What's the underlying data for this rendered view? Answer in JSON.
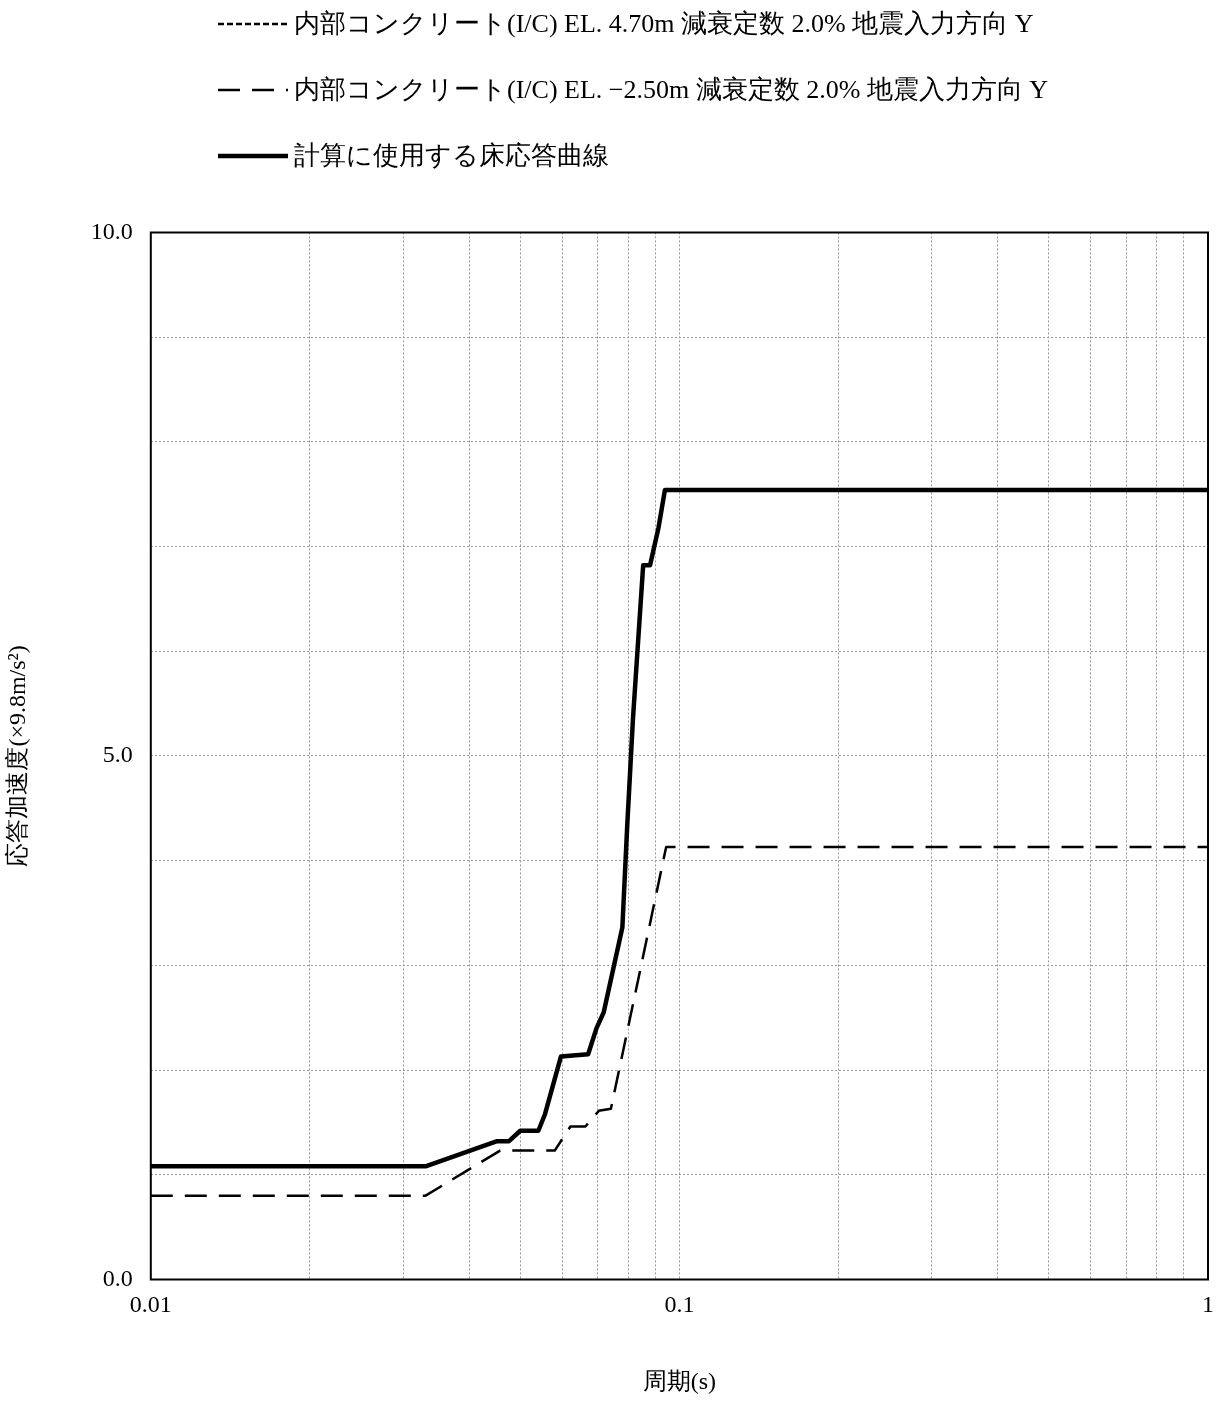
{
  "chart_data": {
    "type": "line",
    "xlabel": "周期(s)",
    "ylabel": "応答加速度(×9.8m/s²)",
    "log": "x",
    "grid": true,
    "legend": "top left",
    "marker": "none",
    "xlim": [
      0.01,
      1
    ],
    "xticks": [
      0.01,
      {
        "value": 0.02,
        "label": null
      },
      {
        "value": 0.03,
        "label": null
      },
      {
        "value": 0.04,
        "label": null
      },
      {
        "value": 0.05,
        "label": null
      },
      {
        "value": 0.06,
        "label": null
      },
      {
        "value": 0.07,
        "label": null
      },
      {
        "value": 0.08,
        "label": null
      },
      {
        "value": 0.09,
        "label": null
      },
      0.1,
      {
        "value": 0.2,
        "label": null
      },
      {
        "value": 0.3,
        "label": null
      },
      {
        "value": 0.4,
        "label": null
      },
      {
        "value": 0.5,
        "label": null
      },
      {
        "value": 0.6,
        "label": null
      },
      {
        "value": 0.7,
        "label": null
      },
      {
        "value": 0.8,
        "label": null
      },
      {
        "value": 0.9,
        "label": null
      },
      1
    ],
    "ylim": [
      0,
      10
    ],
    "yticks": [
      {
        "value": 0,
        "label": "0.0"
      },
      {
        "value": 1,
        "label": null
      },
      {
        "value": 2,
        "label": null
      },
      {
        "value": 3,
        "label": null
      },
      {
        "value": 4,
        "label": null
      },
      {
        "value": 5,
        "label": "5.0"
      },
      {
        "value": 6,
        "label": null
      },
      {
        "value": 7,
        "label": null
      },
      {
        "value": 8,
        "label": null
      },
      {
        "value": 9,
        "label": null
      },
      {
        "value": 10,
        "label": "10.0"
      }
    ],
    "series": [
      {
        "name": "内部コンクリート(I/C) EL. 4.70m 減衰定数 2.0% 地震入力方向 Y",
        "color": "#000000",
        "line_style": "dotted"
      },
      {
        "name": "内部コンクリート(I/C) EL. −2.50m 減衰定数 2.0% 地震入力方向 Y",
        "color": "#000000",
        "line_style": "dashed",
        "x": [
          0.01,
          0.0331,
          0.0458,
          0.0581,
          0.0622,
          0.0664,
          0.0704,
          0.0742,
          0.0944,
          1
        ],
        "values": [
          0.8,
          0.8,
          1.23,
          1.23,
          1.46,
          1.46,
          1.61,
          1.63,
          4.13,
          4.13
        ]
      },
      {
        "name": "計算に使用する床応答曲線",
        "color": "#000000",
        "line_style": "solid",
        "x": [
          0.01,
          0.0331,
          0.0452,
          0.0476,
          0.05,
          0.0541,
          0.0557,
          0.0597,
          0.0672,
          0.0697,
          0.0719,
          0.078,
          0.0797,
          0.0817,
          0.0854,
          0.088,
          0.0913,
          0.0939,
          1
        ],
        "values": [
          1.08,
          1.08,
          1.32,
          1.32,
          1.42,
          1.42,
          1.58,
          2.13,
          2.15,
          2.4,
          2.55,
          3.36,
          4.35,
          5.36,
          6.82,
          6.82,
          7.18,
          7.54,
          7.54
        ]
      }
    ]
  }
}
